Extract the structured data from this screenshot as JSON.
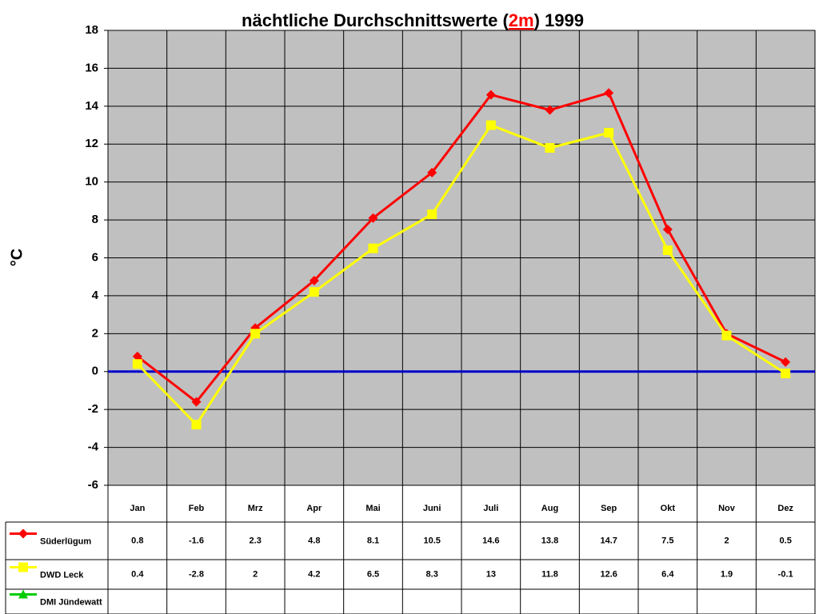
{
  "chart_data": {
    "type": "line",
    "title": [
      "nächtliche Durchschnittswerte (",
      "2m",
      ") 1999"
    ],
    "y_label": "°C",
    "categories": [
      "Jan",
      "Feb",
      "Mrz",
      "Apr",
      "Mai",
      "Juni",
      "Juli",
      "Aug",
      "Sep",
      "Okt",
      "Nov",
      "Dez"
    ],
    "series": [
      {
        "name": "Süderlügum",
        "color": "#ff0000",
        "marker": "diamond",
        "values": [
          0.8,
          -1.6,
          2.3,
          4.8,
          8.1,
          10.5,
          14.6,
          13.8,
          14.7,
          7.5,
          2,
          0.5
        ]
      },
      {
        "name": "DWD Leck",
        "color": "#ffff00",
        "marker": "square",
        "values": [
          0.4,
          -2.8,
          2,
          4.2,
          6.5,
          8.3,
          13,
          11.8,
          12.6,
          6.4,
          1.9,
          -0.1
        ]
      },
      {
        "name": "DMI Jündewatt",
        "color": "#00cc00",
        "marker": "triangle",
        "values": [
          null,
          null,
          null,
          null,
          null,
          null,
          null,
          null,
          null,
          null,
          null,
          null
        ]
      }
    ],
    "ylim": [
      -6,
      18
    ],
    "yticks": [
      -6,
      -4,
      -2,
      0,
      2,
      4,
      6,
      8,
      10,
      12,
      14,
      16,
      18
    ],
    "grid": true,
    "zero_line_color": "#0000cc",
    "plot_background": "#c0c0c0",
    "data_table": true
  }
}
